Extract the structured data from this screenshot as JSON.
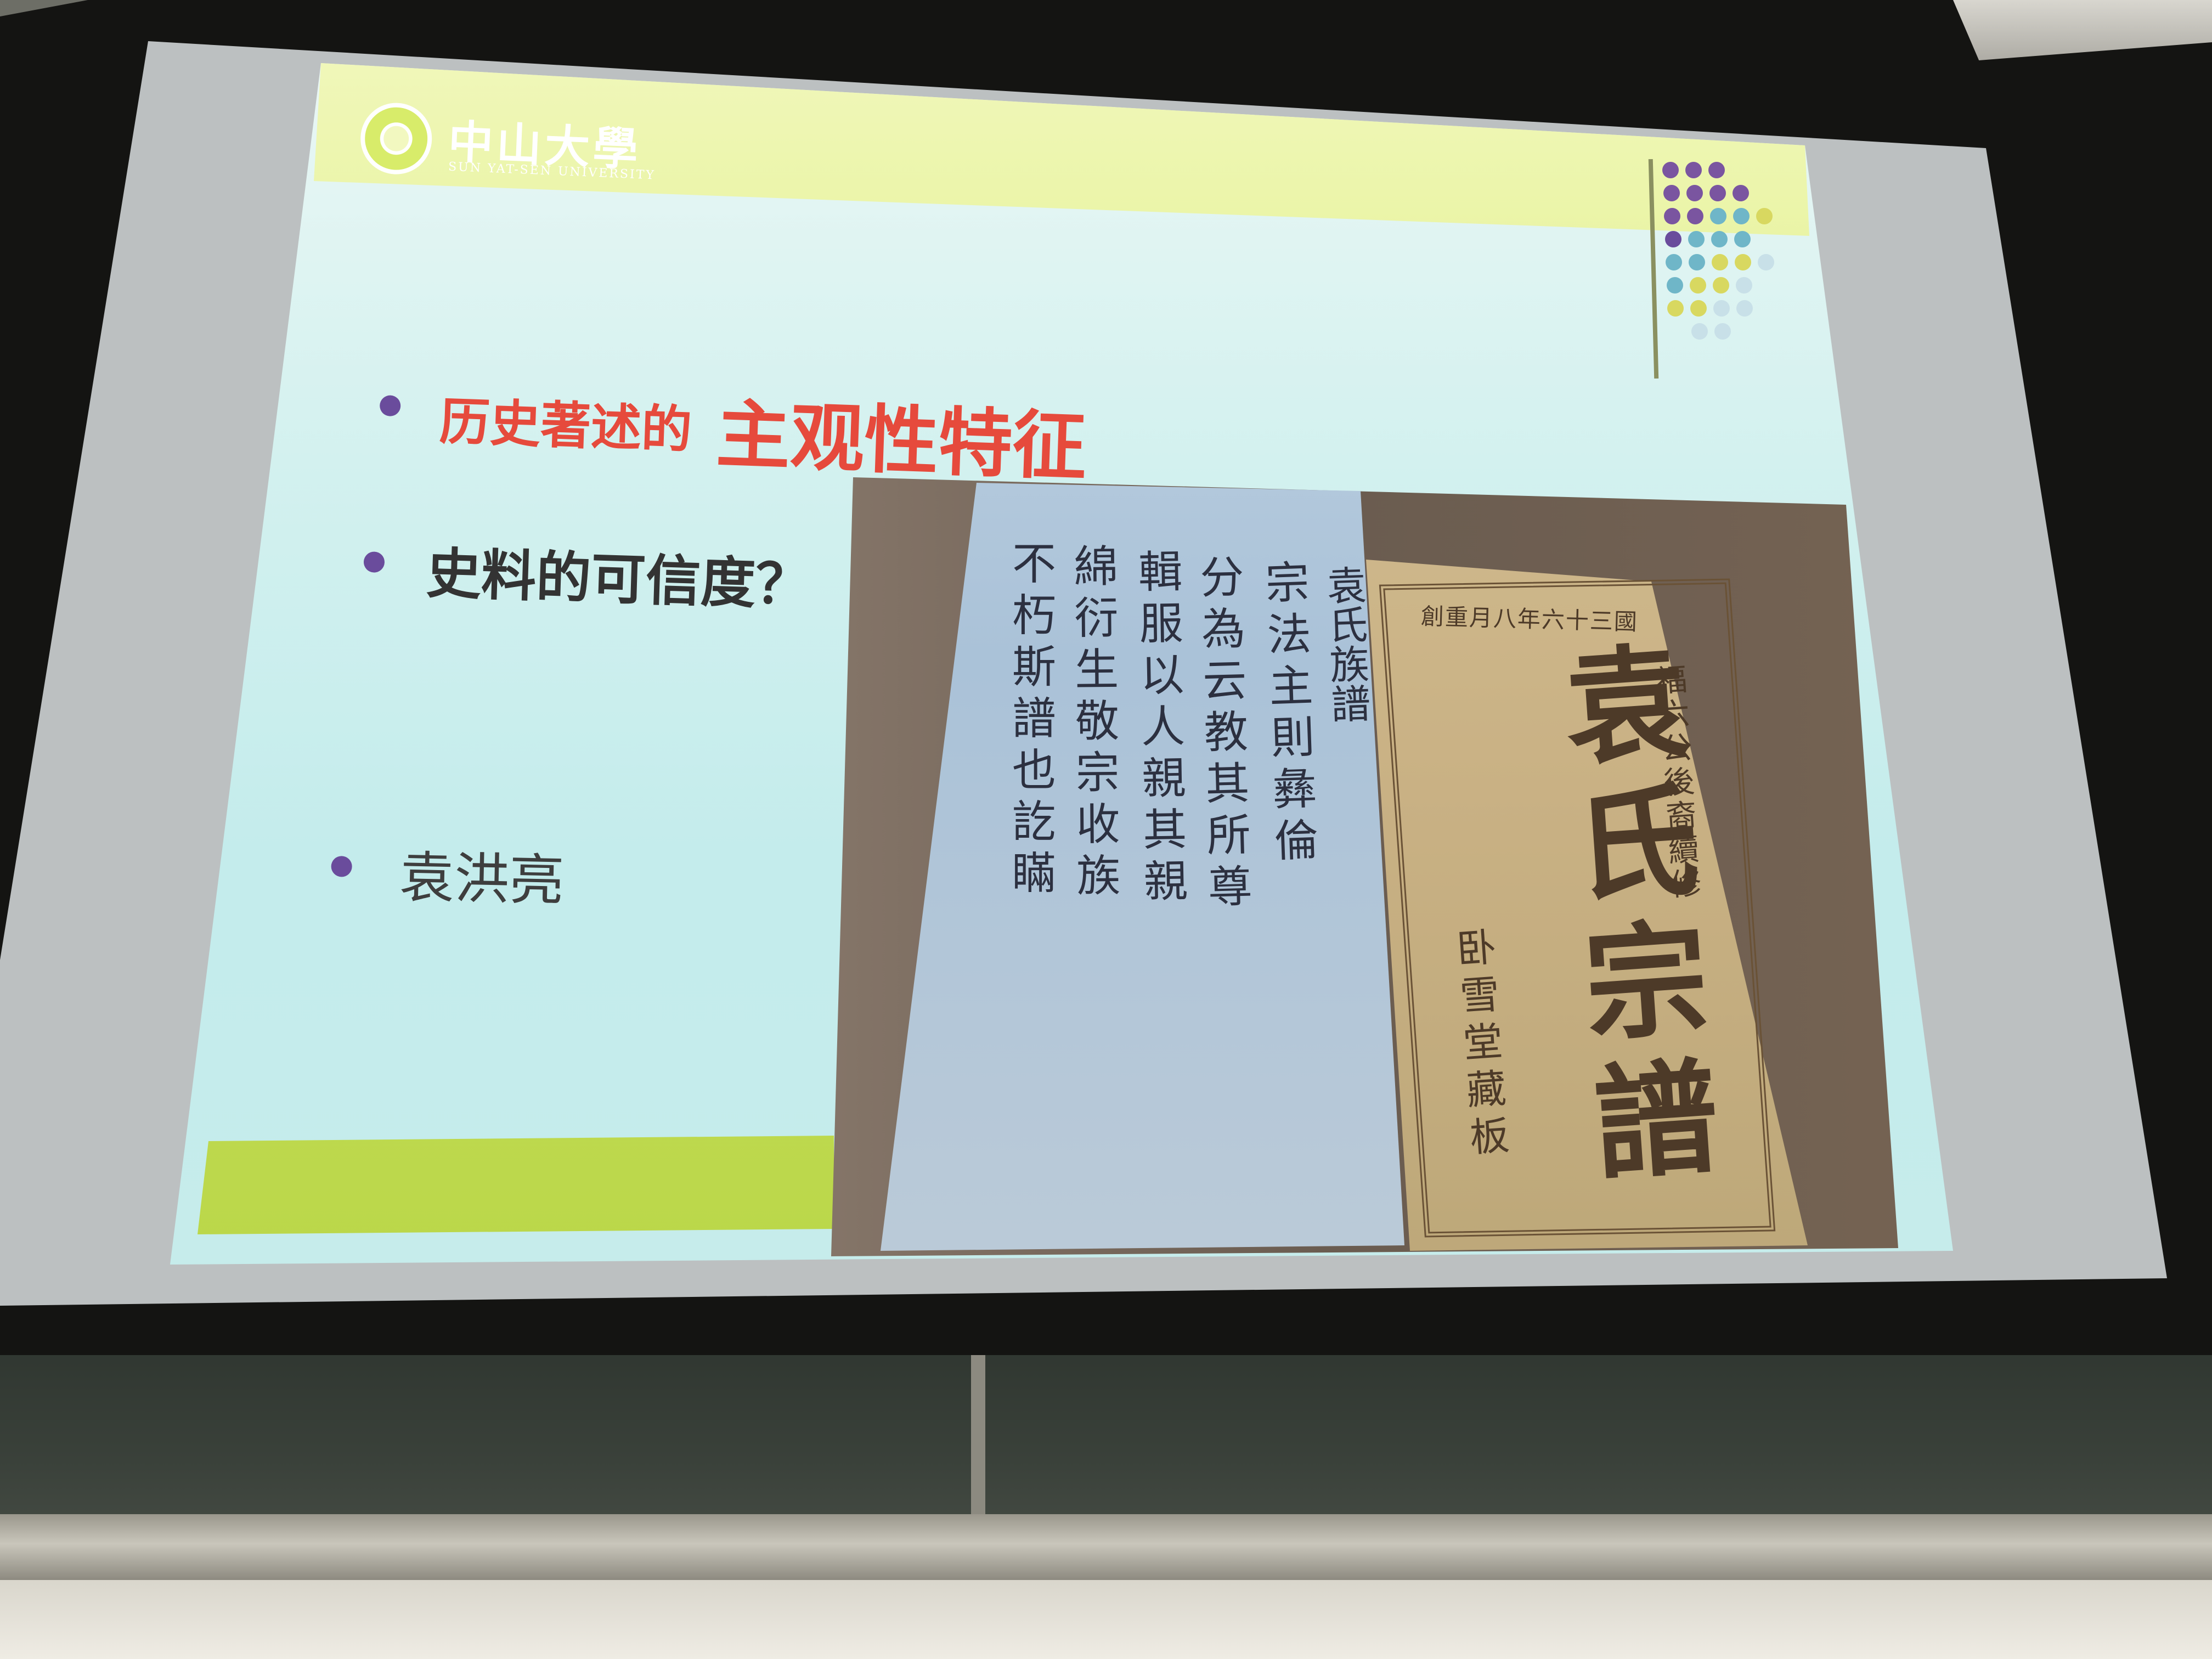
{
  "slide": {
    "logo": {
      "name": "中山大學",
      "english": "SUN YAT-SEN UNIVERSITY"
    },
    "bullets": [
      {
        "prefix": "历史著述的",
        "emphasis": "主观性特征"
      },
      {
        "text": "史料的可信度？"
      },
      {
        "text": "袁洪亮"
      }
    ],
    "colors": {
      "accent_red": "#e64a3c",
      "bullet_purple": "#6a4c9c",
      "header_green": "#c6e04a",
      "background_cyan": "#c6eceb"
    },
    "decoration": "dot-grid"
  },
  "photo": {
    "book_title": "袁氏宗譜",
    "top_line": "創重月八年六十三國",
    "side_line": "福六公後裔續修",
    "publisher": "卧雪堂藏板",
    "columns": [
      "袁氏族譜",
      "宗法主則彝倫",
      "分為云教其所尊",
      "輯服以人親其親",
      "綿衍生敬宗收族",
      "不朽斯譜也訖瞞"
    ]
  }
}
